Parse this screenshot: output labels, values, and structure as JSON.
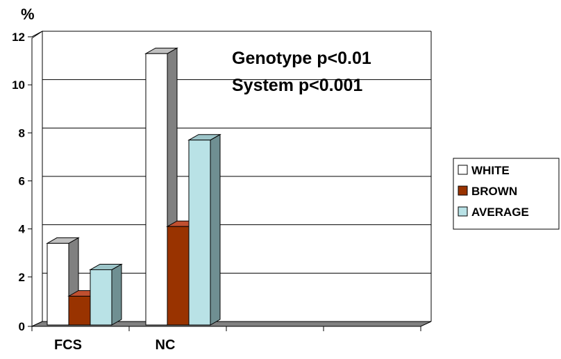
{
  "chart_data": {
    "type": "bar",
    "ylabel": "%",
    "xlabel": "",
    "ylim": [
      0,
      12
    ],
    "yticks": [
      "0",
      "2",
      "4",
      "6",
      "8",
      "10",
      "12"
    ],
    "categories": [
      "FCS",
      "NC",
      "",
      ""
    ],
    "series": [
      {
        "name": "WHITE",
        "color": "#ffffff",
        "values": [
          3.4,
          11.3,
          null,
          null
        ]
      },
      {
        "name": "BROWN",
        "color": "#993300",
        "values": [
          1.2,
          4.1,
          null,
          null
        ]
      },
      {
        "name": "AVERAGE",
        "color": "#b9e2e6",
        "values": [
          2.3,
          7.7,
          null,
          null
        ]
      }
    ],
    "annotations": [
      "Genotype p<0.01",
      "System p<0.001"
    ],
    "grid": true,
    "legend": "right",
    "style": "3d"
  }
}
